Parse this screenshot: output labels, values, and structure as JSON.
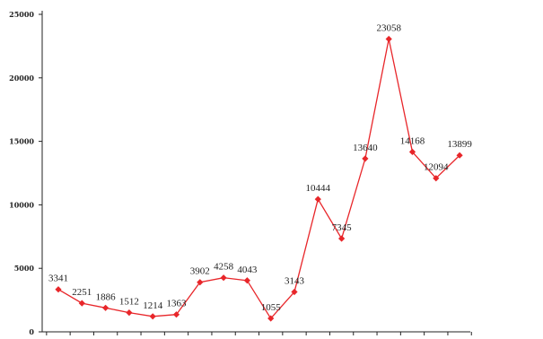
{
  "chart_data": {
    "type": "line",
    "title": "",
    "xlabel": "",
    "ylabel": "",
    "ylim": [
      0,
      25000
    ],
    "yticks": [
      0,
      5000,
      10000,
      15000,
      20000,
      25000
    ],
    "ytick_labels": [
      "0",
      "5000",
      "10000",
      "15000",
      "20000",
      "25000"
    ],
    "grid": false,
    "legend": "none",
    "marker": "diamond",
    "colors": {
      "series": "#e8262a",
      "axis": "#222222",
      "text": "#222222"
    },
    "series": [
      {
        "values": [
          3341,
          2251,
          1886,
          1512,
          1214,
          1363,
          3902,
          4258,
          4043,
          1055,
          3143,
          10444,
          7345,
          13640,
          23058,
          14168,
          12094,
          13899
        ],
        "labels": [
          "3341",
          "2251",
          "1886",
          "1512",
          "1214",
          "1363",
          "3902",
          "4258",
          "4043",
          "1055",
          "3143",
          "10444",
          "7345",
          "13640",
          "23058",
          "14168",
          "12094",
          "13899"
        ]
      }
    ]
  }
}
